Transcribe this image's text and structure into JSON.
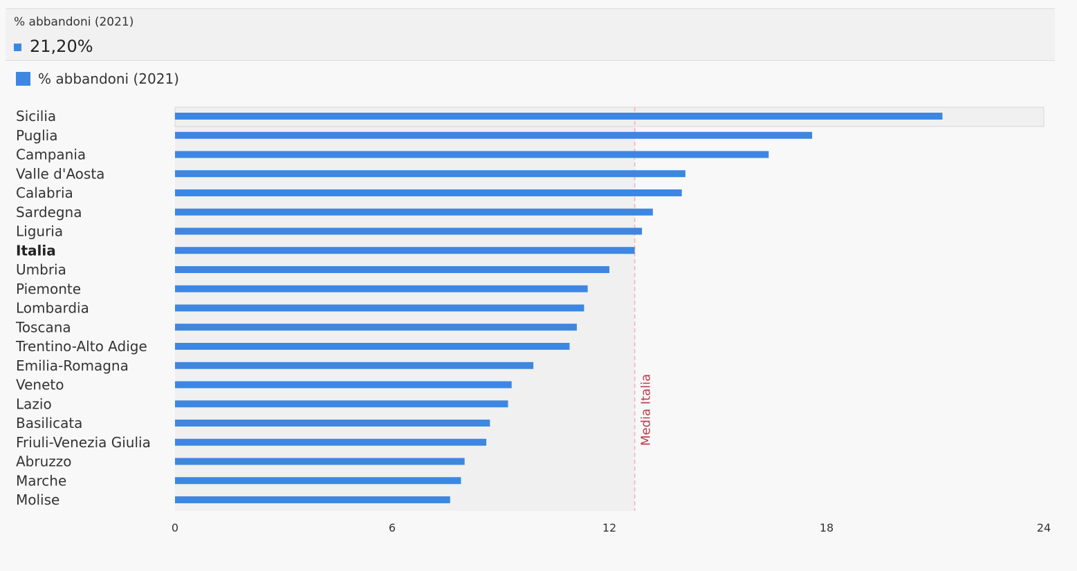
{
  "tooltip": {
    "series_name": "% abbandoni (2021)",
    "value": "21,20%",
    "color": "#3d87e2"
  },
  "legend": {
    "label": "% abbandoni (2021)",
    "color": "#3d87e2"
  },
  "chart_data": {
    "type": "bar",
    "orientation": "horizontal",
    "categories": [
      "Sicilia",
      "Puglia",
      "Campania",
      "Valle d'Aosta",
      "Calabria",
      "Sardegna",
      "Liguria",
      "Italia",
      "Umbria",
      "Piemonte",
      "Lombardia",
      "Toscana",
      "Trentino-Alto Adige",
      "Emilia-Romagna",
      "Veneto",
      "Lazio",
      "Basilicata",
      "Friuli-Venezia Giulia",
      "Abruzzo",
      "Marche",
      "Molise"
    ],
    "series": [
      {
        "name": "% abbandoni (2021)",
        "values": [
          21.2,
          17.6,
          16.4,
          14.1,
          14.0,
          13.2,
          12.9,
          12.7,
          12.0,
          11.4,
          11.3,
          11.1,
          10.9,
          9.9,
          9.3,
          9.2,
          8.7,
          8.6,
          8.0,
          7.9,
          7.6
        ],
        "color": "#3d87e2"
      }
    ],
    "bold_category": "Italia",
    "highlighted_category": "Sicilia",
    "xlim": [
      0,
      24
    ],
    "xticks": [
      "0",
      "6",
      "12",
      "18",
      "24"
    ],
    "reference_line": {
      "label": "Media Italia",
      "value": 12.7,
      "color": "#c0394a"
    },
    "title": "",
    "xlabel": "",
    "ylabel": ""
  }
}
